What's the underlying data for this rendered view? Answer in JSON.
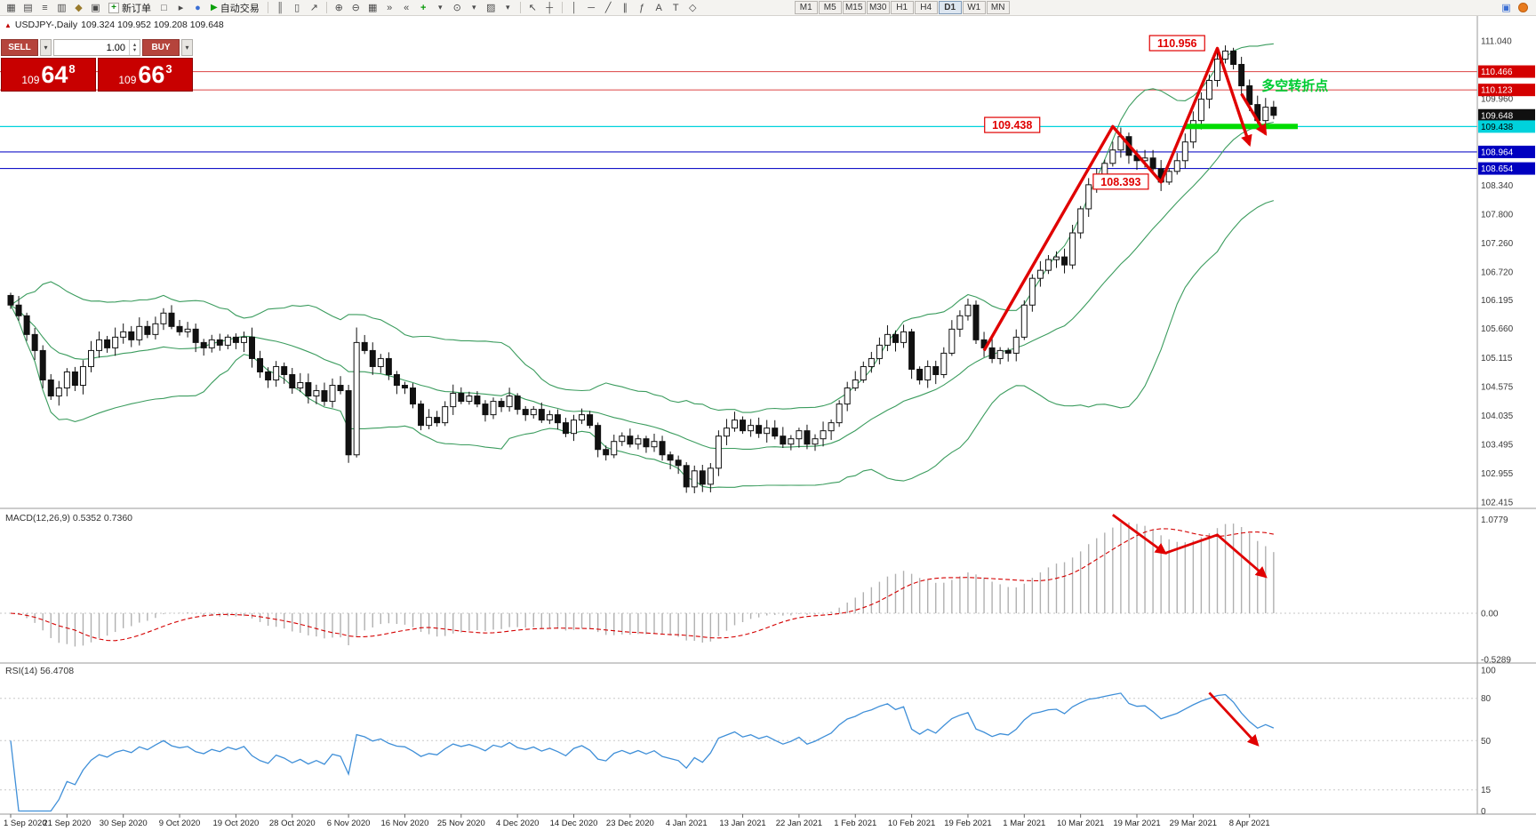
{
  "toolbar": {
    "new_order": "新订单",
    "auto_trading": "自动交易",
    "timeframes": [
      "M1",
      "M5",
      "M15",
      "M30",
      "H1",
      "H4",
      "D1",
      "W1",
      "MN"
    ],
    "active_timeframe": "D1"
  },
  "icons": {
    "caret": "▾",
    "spin_up": "▴",
    "spin_down": "▾",
    "plus": "+",
    "play": "▶",
    "tick_marker": "▲",
    "new_chart": "▦",
    "profiles": "▤",
    "market_watch": "≡",
    "data_window": "▥",
    "navigator": "◆",
    "terminal": "▣",
    "chart_window": "□",
    "strategy_tester": "▸",
    "mql5": "●",
    "bars": "║",
    "candles": "▯",
    "line_chart": "↗",
    "zoom_in": "⊕",
    "zoom_out": "⊖",
    "tile_windows": "▦",
    "auto_scroll": "»",
    "chart_shift": "«",
    "indicators": "+",
    "periods": "⊙",
    "templates": "▨",
    "cursor": "↖",
    "crosshair": "┼",
    "vertical_line": "│",
    "horizontal_line": "─",
    "trendline": "╱",
    "channel": "∥",
    "fibonacci": "ƒ",
    "text_tool": "A",
    "label_tool": "T",
    "shapes": "◇",
    "panel": "▣",
    "status_dot": "●"
  },
  "chart_header": {
    "symbol": "USDJPY-,Daily",
    "ohlc": "109.324 109.952 109.208 109.648"
  },
  "trade_panel": {
    "sell_label": "SELL",
    "buy_label": "BUY",
    "volume": "1.00",
    "sell_price_main": "109",
    "sell_price_pips": "64",
    "sell_price_pt": "8",
    "buy_price_main": "109",
    "buy_price_pips": "66",
    "buy_price_pt": "3"
  },
  "chart_data": {
    "type": "candlestick",
    "symbol": "USDJPY-",
    "timeframe": "Daily",
    "ohlc_display": {
      "open": "109.324",
      "high": "109.952",
      "low": "109.208",
      "close": "109.648"
    },
    "ylim": [
      102.415,
      111.04
    ],
    "x_labels": [
      "1 Sep 2020",
      "21 Sep 2020",
      "30 Sep 2020",
      "9 Oct 2020",
      "19 Oct 2020",
      "28 Oct 2020",
      "6 Nov 2020",
      "16 Nov 2020",
      "25 Nov 2020",
      "4 Dec 2020",
      "14 Dec 2020",
      "23 Dec 2020",
      "4 Jan 2021",
      "13 Jan 2021",
      "22 Jan 2021",
      "1 Feb 2021",
      "10 Feb 2021",
      "19 Feb 2021",
      "1 Mar 2021",
      "10 Mar 2021",
      "19 Mar 2021",
      "29 Mar 2021",
      "8 Apr 2021"
    ],
    "label_every": 7,
    "closes": [
      106.1,
      105.9,
      105.55,
      105.25,
      104.7,
      104.4,
      104.55,
      104.85,
      104.6,
      104.95,
      105.25,
      105.45,
      105.3,
      105.5,
      105.6,
      105.45,
      105.7,
      105.55,
      105.75,
      105.95,
      105.7,
      105.6,
      105.65,
      105.4,
      105.3,
      105.45,
      105.35,
      105.5,
      105.4,
      105.5,
      105.1,
      104.85,
      104.7,
      104.95,
      104.8,
      104.55,
      104.65,
      104.4,
      104.5,
      104.3,
      104.6,
      104.5,
      103.3,
      105.4,
      105.25,
      104.95,
      105.1,
      104.8,
      104.6,
      104.55,
      104.25,
      103.85,
      104.0,
      103.9,
      104.2,
      104.45,
      104.3,
      104.4,
      104.25,
      104.05,
      104.3,
      104.2,
      104.4,
      104.15,
      104.05,
      104.15,
      103.95,
      104.05,
      103.9,
      103.7,
      103.95,
      104.05,
      103.85,
      103.4,
      103.3,
      103.55,
      103.65,
      103.5,
      103.6,
      103.45,
      103.55,
      103.3,
      103.2,
      103.1,
      102.7,
      103.0,
      102.75,
      103.05,
      103.65,
      103.8,
      103.95,
      103.75,
      103.85,
      103.7,
      103.8,
      103.65,
      103.5,
      103.6,
      103.75,
      103.5,
      103.6,
      103.75,
      103.9,
      104.25,
      104.55,
      104.7,
      104.95,
      105.1,
      105.35,
      105.55,
      105.4,
      105.6,
      104.9,
      104.7,
      104.95,
      104.8,
      105.2,
      105.65,
      105.9,
      106.1,
      105.45,
      105.3,
      105.1,
      105.25,
      105.2,
      105.5,
      106.1,
      106.6,
      106.75,
      106.95,
      107.0,
      106.85,
      107.45,
      107.9,
      108.35,
      108.5,
      108.75,
      109.0,
      109.25,
      108.9,
      108.8,
      108.85,
      108.65,
      108.4,
      108.6,
      108.8,
      109.15,
      109.55,
      109.95,
      110.3,
      110.7,
      110.85,
      110.6,
      110.2,
      109.85,
      109.55,
      109.8,
      109.648
    ],
    "wick_overrides": {
      "42": {
        "low": 103.15
      },
      "43": {
        "high": 105.68,
        "low": 103.25
      },
      "84": {
        "low": 102.59
      },
      "119": {
        "high": 106.22
      },
      "138": {
        "high": 109.42
      },
      "151": {
        "high": 110.956
      }
    },
    "bollinger": {
      "period": 20,
      "deviation": 2,
      "color": "#3b9c5e"
    },
    "candle_colors": {
      "up_fill": "#ffffff",
      "down_fill": "#111111",
      "outline": "#111111"
    },
    "price_scale_ticks": [
      "111.040",
      "109.960",
      "108.340",
      "107.800",
      "107.260",
      "106.720",
      "106.195",
      "105.660",
      "105.115",
      "104.575",
      "104.035",
      "103.495",
      "102.955",
      "102.415"
    ],
    "price_labels": [
      {
        "text": "110.466",
        "price": 110.466,
        "bg": "#d40000",
        "fg": "#ffffff",
        "line_color": "#e05a5a"
      },
      {
        "text": "110.123",
        "price": 110.123,
        "bg": "#d40000",
        "fg": "#ffffff",
        "line_color": "#e05a5a"
      },
      {
        "text": "109.648",
        "price": 109.648,
        "bg": "#101010",
        "fg": "#ffffff",
        "line_color": null
      },
      {
        "text": "109.438",
        "price": 109.438,
        "bg": "#00d2dc",
        "fg": "#000000",
        "line_color": "#00d2dc"
      },
      {
        "text": "108.964",
        "price": 108.964,
        "bg": "#0000c0",
        "fg": "#ffffff",
        "line_color": "#1414c8"
      },
      {
        "text": "108.654",
        "price": 108.654,
        "bg": "#0000c0",
        "fg": "#ffffff",
        "line_color": "#1414c8"
      }
    ],
    "support_bar": {
      "price": 109.44,
      "bar_start": 146,
      "bar_end": 160,
      "thickness": 6,
      "color": "#00dc00"
    },
    "trend_arrows": {
      "color": "#e00000",
      "polylines": [
        [
          [
            121,
            105.25
          ],
          [
            137,
            109.44
          ],
          [
            143,
            108.4
          ],
          [
            150,
            110.9
          ],
          [
            154,
            109.1
          ]
        ],
        [
          [
            153,
            110.05
          ],
          [
            156,
            109.3
          ]
        ]
      ]
    },
    "callouts": [
      {
        "text": "110.956",
        "bar": 145,
        "price": 110.99
      },
      {
        "text": "109.438",
        "bar": 124.5,
        "price": 109.46
      },
      {
        "text": "108.393",
        "bar": 138,
        "price": 108.4
      }
    ],
    "note": {
      "text": "多空转折点",
      "bar": 155.5,
      "price": 110.12,
      "color": "#00cc33"
    },
    "macd": {
      "label": "MACD(12,26,9)",
      "values": [
        "0.5352",
        "0.7360"
      ],
      "params": [
        12,
        26,
        9
      ],
      "scale": [
        "1.0779",
        "0.00",
        "-0.5289"
      ],
      "ylim": [
        -0.5289,
        1.0779
      ],
      "hist_color": "#b0b0b0",
      "signal_color": "#d40000",
      "arrows": [
        [
          [
            137,
            1.13
          ],
          [
            143.5,
            0.69
          ]
        ],
        [
          [
            143.5,
            0.69
          ],
          [
            150,
            0.9
          ],
          [
            156,
            0.42
          ]
        ]
      ]
    },
    "rsi": {
      "label": "RSI(14)",
      "value": "56.4708",
      "period": 14,
      "scale": [
        "100",
        "80",
        "50",
        "15",
        "0"
      ],
      "levels": [
        80,
        50,
        15
      ],
      "line_color": "#3f8fd8",
      "arrow": [
        [
          149,
          84
        ],
        [
          155,
          47
        ]
      ]
    }
  }
}
